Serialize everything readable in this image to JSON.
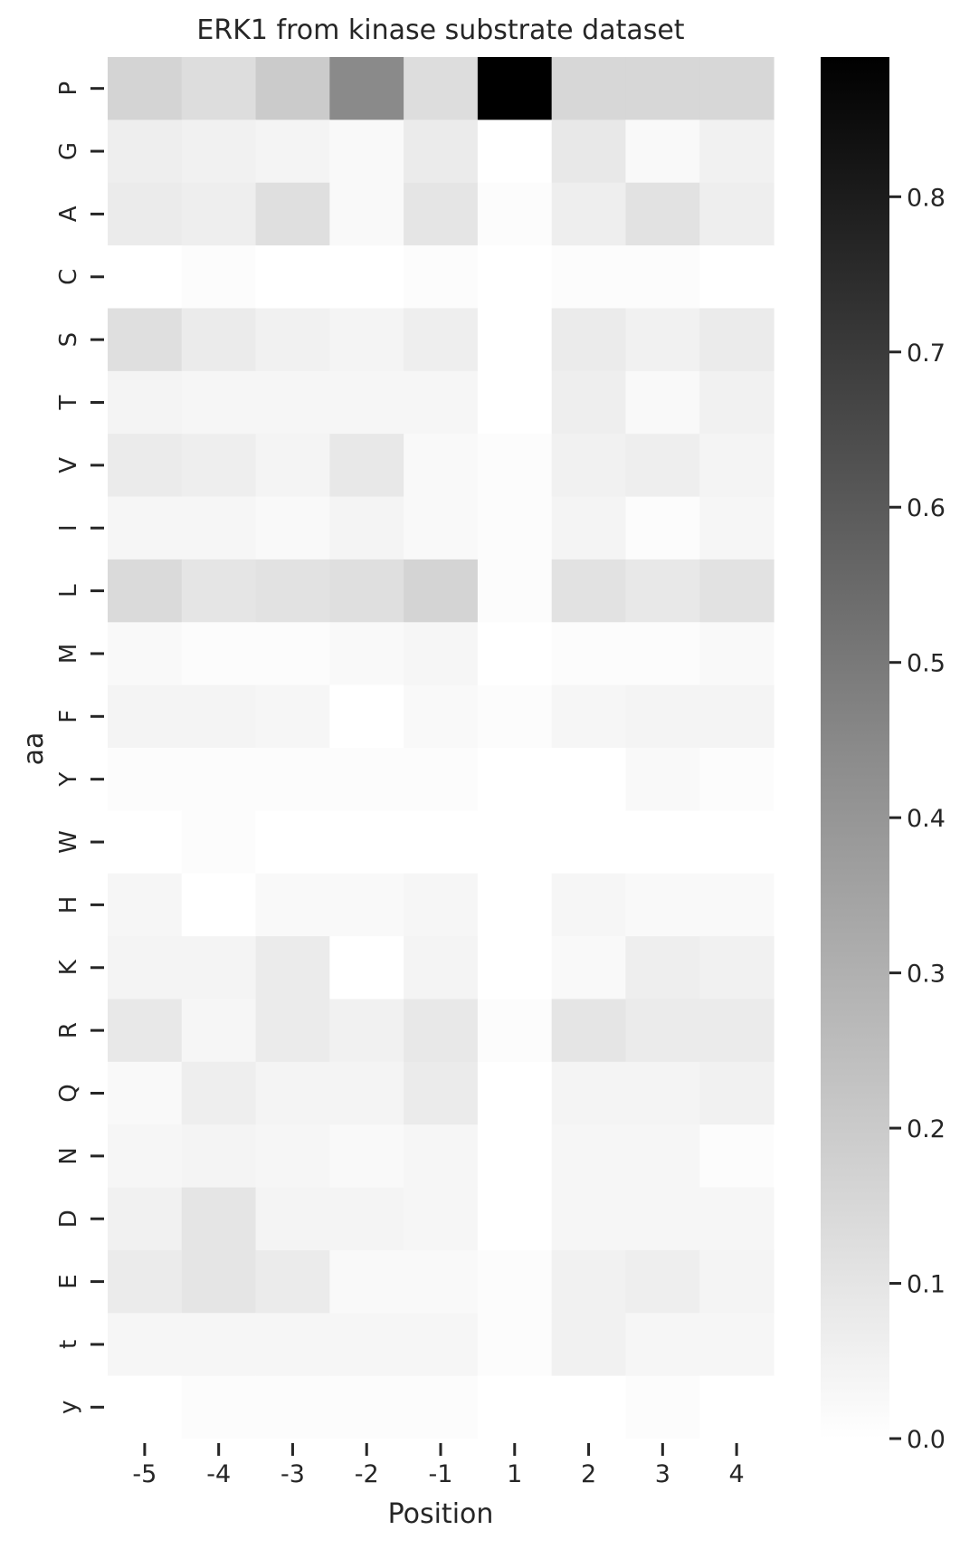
{
  "chart_data": {
    "type": "heatmap",
    "title": "ERK1 from kinase substrate dataset",
    "xlabel": "Position",
    "ylabel": "aa",
    "x_categories": [
      "-5",
      "-4",
      "-3",
      "-2",
      "-1",
      "1",
      "2",
      "3",
      "4"
    ],
    "y_categories": [
      "P",
      "G",
      "A",
      "C",
      "S",
      "T",
      "V",
      "I",
      "L",
      "M",
      "F",
      "Y",
      "W",
      "H",
      "K",
      "R",
      "Q",
      "N",
      "D",
      "E",
      "t",
      "y"
    ],
    "values": [
      [
        0.15,
        0.12,
        0.18,
        0.41,
        0.12,
        0.89,
        0.14,
        0.14,
        0.14
      ],
      [
        0.06,
        0.05,
        0.04,
        0.02,
        0.07,
        0.0,
        0.08,
        0.02,
        0.05
      ],
      [
        0.07,
        0.06,
        0.11,
        0.02,
        0.09,
        0.01,
        0.06,
        0.1,
        0.06
      ],
      [
        0.0,
        0.01,
        0.0,
        0.0,
        0.01,
        0.0,
        0.01,
        0.01,
        0.0
      ],
      [
        0.11,
        0.07,
        0.05,
        0.04,
        0.06,
        0.0,
        0.07,
        0.05,
        0.07
      ],
      [
        0.04,
        0.03,
        0.03,
        0.03,
        0.03,
        0.0,
        0.06,
        0.02,
        0.05
      ],
      [
        0.07,
        0.06,
        0.04,
        0.08,
        0.02,
        0.01,
        0.05,
        0.06,
        0.04
      ],
      [
        0.03,
        0.03,
        0.02,
        0.04,
        0.02,
        0.01,
        0.04,
        0.01,
        0.03
      ],
      [
        0.13,
        0.09,
        0.1,
        0.11,
        0.15,
        0.01,
        0.1,
        0.08,
        0.1
      ],
      [
        0.02,
        0.01,
        0.01,
        0.02,
        0.03,
        0.0,
        0.01,
        0.01,
        0.02
      ],
      [
        0.04,
        0.04,
        0.03,
        0.0,
        0.02,
        0.01,
        0.03,
        0.04,
        0.04
      ],
      [
        0.01,
        0.01,
        0.01,
        0.01,
        0.01,
        0.0,
        0.0,
        0.02,
        0.01
      ],
      [
        0.0,
        0.01,
        0.0,
        0.0,
        0.0,
        0.0,
        0.0,
        0.0,
        0.0
      ],
      [
        0.03,
        0.0,
        0.02,
        0.02,
        0.03,
        0.0,
        0.03,
        0.02,
        0.02
      ],
      [
        0.04,
        0.04,
        0.07,
        0.0,
        0.04,
        0.0,
        0.02,
        0.06,
        0.05
      ],
      [
        0.08,
        0.03,
        0.07,
        0.05,
        0.08,
        0.01,
        0.09,
        0.07,
        0.07
      ],
      [
        0.02,
        0.06,
        0.04,
        0.04,
        0.07,
        0.0,
        0.04,
        0.04,
        0.05
      ],
      [
        0.03,
        0.04,
        0.03,
        0.02,
        0.03,
        0.0,
        0.03,
        0.03,
        0.01
      ],
      [
        0.05,
        0.09,
        0.04,
        0.04,
        0.03,
        0.0,
        0.03,
        0.03,
        0.03
      ],
      [
        0.07,
        0.09,
        0.07,
        0.02,
        0.02,
        0.01,
        0.05,
        0.06,
        0.04
      ],
      [
        0.03,
        0.03,
        0.03,
        0.03,
        0.03,
        0.01,
        0.05,
        0.03,
        0.03
      ],
      [
        0.0,
        0.01,
        0.01,
        0.01,
        0.01,
        0.0,
        0.0,
        0.01,
        0.0
      ]
    ],
    "colorbar": {
      "min": 0.0,
      "max": 0.89,
      "ticks": [
        0.0,
        0.1,
        0.2,
        0.3,
        0.4,
        0.5,
        0.6,
        0.7,
        0.8
      ],
      "tick_labels": [
        "0.0",
        "0.1",
        "0.2",
        "0.3",
        "0.4",
        "0.5",
        "0.6",
        "0.7",
        "0.8"
      ],
      "cmap": "Greys"
    }
  }
}
